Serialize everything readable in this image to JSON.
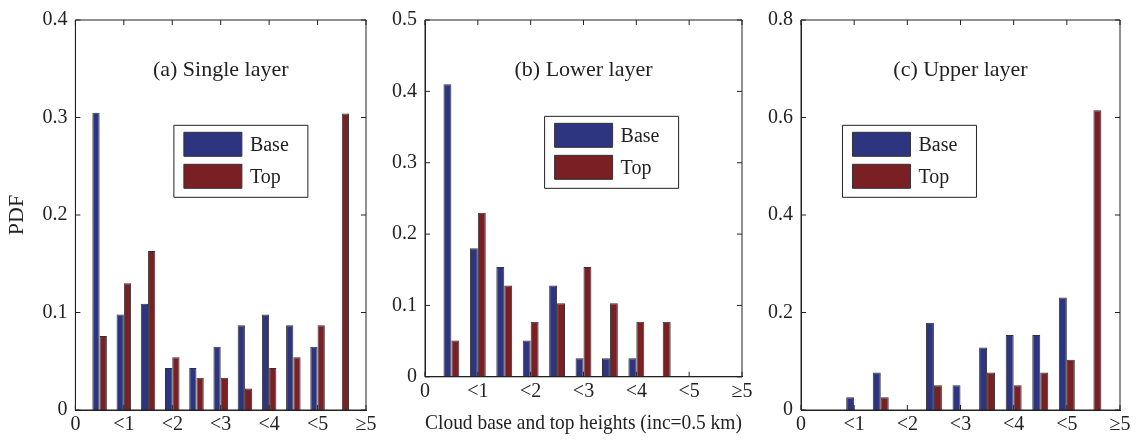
{
  "chart_data": [
    {
      "type": "bar",
      "annotations": [
        "(a) Single layer"
      ],
      "ylabel": "PDF",
      "categories": [
        "0",
        null,
        "<1",
        null,
        "<2",
        null,
        "<3",
        null,
        "<4",
        null,
        "<5",
        null,
        "≥5"
      ],
      "series": [
        {
          "name": "Base",
          "color": "#2e3580",
          "values": [
            null,
            0.305,
            0.098,
            0.109,
            0.043,
            0.043,
            0.065,
            0.087,
            0.098,
            0.087,
            0.065,
            0,
            null
          ]
        },
        {
          "name": "Top",
          "color": "#7a1f24",
          "values": [
            null,
            0.076,
            0.13,
            0.163,
            0.054,
            0.033,
            0.033,
            0.022,
            0.043,
            0.054,
            0.087,
            0.304,
            null
          ]
        }
      ],
      "ylim": [
        0,
        0.4
      ],
      "yticks": [
        0,
        0.1,
        0.2,
        0.3,
        0.4
      ],
      "grid": false,
      "legend": "top right"
    },
    {
      "type": "bar",
      "annotations": [
        "(b) Lower layer"
      ],
      "xlabel": "Cloud base and top heights (inc=0.5 km)",
      "categories": [
        "0",
        null,
        "<1",
        null,
        "<2",
        null,
        "<3",
        null,
        "<4",
        null,
        "<5",
        null,
        "≥5"
      ],
      "series": [
        {
          "name": "Base",
          "color": "#2e3580",
          "values": [
            null,
            0.41,
            0.18,
            0.154,
            0.051,
            0.128,
            0.026,
            0.026,
            0.026,
            0,
            0,
            0,
            null
          ]
        },
        {
          "name": "Top",
          "color": "#7a1f24",
          "values": [
            null,
            0.051,
            0.23,
            0.128,
            0.077,
            0.103,
            0.154,
            0.103,
            0.077,
            0.077,
            0,
            0,
            null
          ]
        }
      ],
      "ylim": [
        0,
        0.5
      ],
      "yticks": [
        0,
        0.1,
        0.2,
        0.3,
        0.4,
        0.5
      ],
      "grid": false,
      "legend": "top right"
    },
    {
      "type": "bar",
      "annotations": [
        "(c) Upper layer"
      ],
      "categories": [
        "0",
        null,
        "<1",
        null,
        "<2",
        null,
        "<3",
        null,
        "<4",
        null,
        "<5",
        null,
        "≥5"
      ],
      "series": [
        {
          "name": "Base",
          "color": "#2e3580",
          "values": [
            null,
            0,
            0.026,
            0.077,
            0,
            0.179,
            0.051,
            0.128,
            0.154,
            0.154,
            0.231,
            0,
            null
          ]
        },
        {
          "name": "Top",
          "color": "#7a1f24",
          "values": [
            null,
            0,
            0,
            0.026,
            0,
            0.051,
            0,
            0.077,
            0.051,
            0.077,
            0.103,
            0.615,
            null
          ]
        }
      ],
      "ylim": [
        0,
        0.8
      ],
      "yticks": [
        0,
        0.2,
        0.4,
        0.6,
        0.8
      ],
      "grid": false,
      "legend": "top left"
    }
  ]
}
